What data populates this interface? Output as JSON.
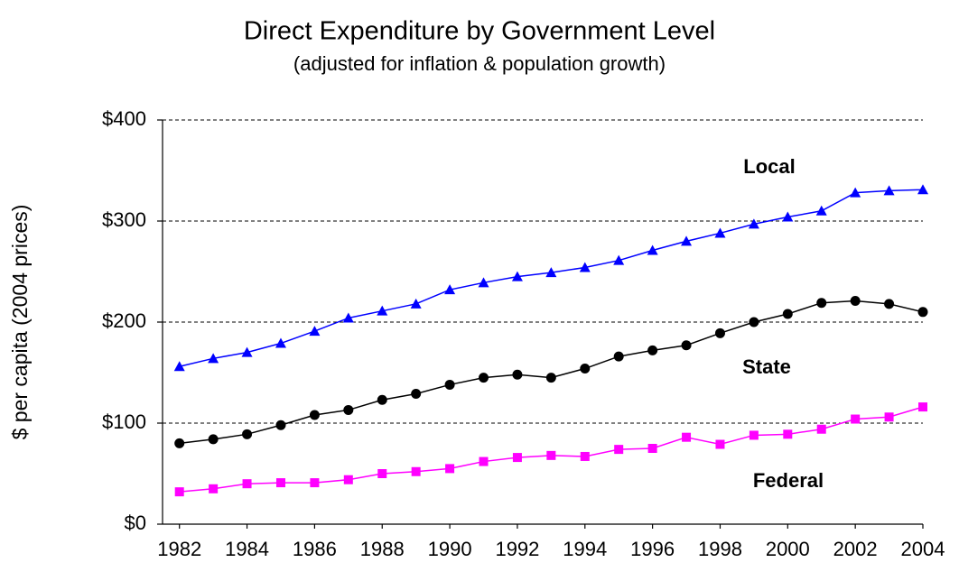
{
  "chart_data": {
    "type": "line",
    "title": "Direct Expenditure by Government Level",
    "subtitle": "(adjusted for inflation & population growth)",
    "y_label": "$ per capita (2004 prices)",
    "x": [
      1982,
      1983,
      1984,
      1985,
      1986,
      1987,
      1988,
      1989,
      1990,
      1991,
      1992,
      1993,
      1994,
      1995,
      1996,
      1997,
      1998,
      1999,
      2000,
      2001,
      2002,
      2003,
      2004
    ],
    "series": [
      {
        "name": "Local",
        "color": "#0000ff",
        "marker": "triangle",
        "values": [
          156,
          164,
          170,
          179,
          191,
          204,
          211,
          218,
          232,
          239,
          245,
          249,
          254,
          261,
          271,
          280,
          288,
          297,
          304,
          310,
          328,
          330,
          331
        ]
      },
      {
        "name": "State",
        "color": "#000000",
        "marker": "circle",
        "values": [
          80,
          84,
          89,
          98,
          108,
          113,
          123,
          129,
          138,
          145,
          148,
          145,
          154,
          166,
          172,
          177,
          189,
          200,
          208,
          219,
          221,
          218,
          210
        ]
      },
      {
        "name": "Federal",
        "color": "#ff00ff",
        "marker": "square",
        "values": [
          32,
          35,
          40,
          41,
          41,
          44,
          50,
          52,
          55,
          62,
          66,
          68,
          67,
          74,
          75,
          86,
          79,
          88,
          89,
          94,
          104,
          106,
          116
        ]
      }
    ],
    "xlim": [
      1981.5,
      2004
    ],
    "xticks": [
      1982,
      1984,
      1986,
      1988,
      1990,
      1992,
      1994,
      1996,
      1998,
      2000,
      2002,
      2004
    ],
    "ylim": [
      0,
      400
    ],
    "yticks": [
      {
        "value": 0,
        "label": "$0"
      },
      {
        "value": 100,
        "label": "$100"
      },
      {
        "value": 200,
        "label": "$200"
      },
      {
        "value": 300,
        "label": "$300"
      },
      {
        "value": 400,
        "label": "$400"
      }
    ],
    "grid": true
  }
}
